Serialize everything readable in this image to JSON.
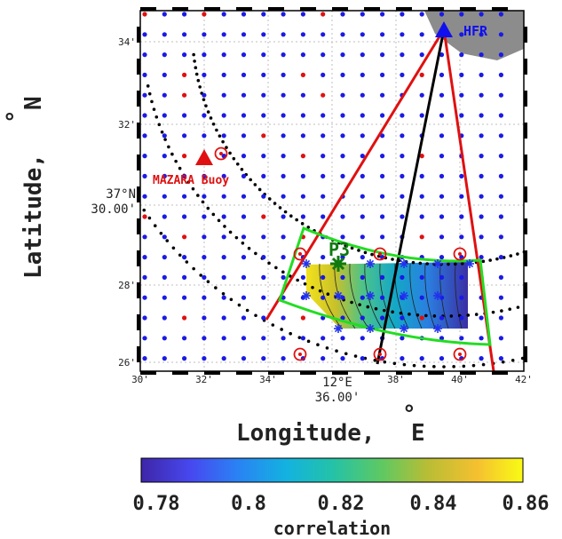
{
  "x_axis": {
    "title": "Longitude,",
    "unit_letter": "E",
    "ticks": [
      "30'",
      "32'",
      "34'",
      "36'",
      "38'",
      "40'",
      "42'"
    ],
    "degree_label": "12°E",
    "center_label": "36.00'"
  },
  "y_axis": {
    "title": "Latitude,",
    "unit_letter": "N",
    "ticks": [
      "26'",
      "28'",
      "30'",
      "32'",
      "34'"
    ],
    "degree_label": "37°N",
    "center_label": "30.00'"
  },
  "labels": {
    "hfr": "HFR",
    "buoy": "MAZARA Buoy",
    "point": "P3"
  },
  "colorbar": {
    "ticks": [
      "0.78",
      "0.8",
      "0.82",
      "0.84",
      "0.86"
    ],
    "label": "correlation"
  },
  "colors": {
    "grid_dot": "#1a1ae6",
    "red": "#e01010",
    "green": "#22dd22",
    "land": "#8c8c8c"
  }
}
